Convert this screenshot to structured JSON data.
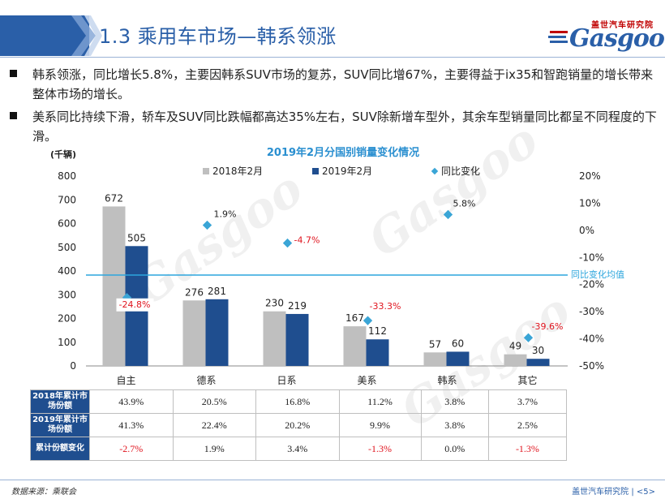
{
  "header": {
    "title": "1.3 乘用车市场—韩系领涨"
  },
  "logo": {
    "cn": "盖世汽车研究院",
    "en": "Gasgoo",
    "watermark_cn": "盖世汽车",
    "watermark_en": "Gasgoo"
  },
  "bullets": [
    "韩系领涨，同比增长5.8%，主要因韩系SUV市场的复苏，SUV同比增67%，主要得益于ix35和智跑销量的增长带来整体市场的增长。",
    "美系同比持续下滑，轿车及SUV同比跌幅都高达35%左右，SUV除新增车型外，其余车型销量同比都呈不同程度的下滑。"
  ],
  "chart_data": {
    "type": "bar",
    "title": "2019年2月分国别销量变化情况",
    "ylabel": "(千辆)",
    "categories": [
      "自主",
      "德系",
      "日系",
      "美系",
      "韩系",
      "其它"
    ],
    "series": [
      {
        "name": "2018年2月",
        "values": [
          672,
          276,
          230,
          167,
          57,
          49
        ],
        "color": "#bfbfbf"
      },
      {
        "name": "2019年2月",
        "values": [
          505,
          281,
          219,
          112,
          60,
          30
        ],
        "color": "#1f4e8f"
      }
    ],
    "yoy": {
      "name": "同比变化",
      "values": [
        -24.8,
        1.9,
        -4.7,
        -33.3,
        5.8,
        -39.6
      ],
      "labels": [
        "-24.8%",
        "1.9%",
        "-4.7%",
        "-33.3%",
        "5.8%",
        "-39.6%"
      ],
      "color": "#3aa5d6"
    },
    "yoy_average": {
      "label": "同比变化均值",
      "value": -16.5,
      "color": "#2da6dd"
    },
    "ylim": [
      0,
      800
    ],
    "yticks": [
      0,
      100,
      200,
      300,
      400,
      500,
      600,
      700,
      800
    ],
    "y2lim": [
      -50,
      20
    ],
    "y2ticks": [
      "20%",
      "10%",
      "0%",
      "-10%",
      "-20%",
      "-30%",
      "-40%",
      "-50%"
    ],
    "y2tick_values": [
      20,
      10,
      0,
      -10,
      -20,
      -30,
      -40,
      -50
    ],
    "legend_position": "top"
  },
  "table": {
    "rows": [
      {
        "header": "2018年累计市场份额",
        "values": [
          "43.9%",
          "20.5%",
          "16.8%",
          "11.2%",
          "3.8%",
          "3.7%"
        ]
      },
      {
        "header": "2019年累计市场份额",
        "values": [
          "41.3%",
          "22.4%",
          "20.2%",
          "9.9%",
          "3.8%",
          "2.5%"
        ]
      },
      {
        "header": "累计份额变化",
        "values": [
          "-2.7%",
          "1.9%",
          "3.4%",
          "-1.3%",
          "0.0%",
          "-1.3%"
        ]
      }
    ]
  },
  "footer": {
    "source": "数据来源：乘联会",
    "page": "盖世汽车研究院 | <5>"
  }
}
